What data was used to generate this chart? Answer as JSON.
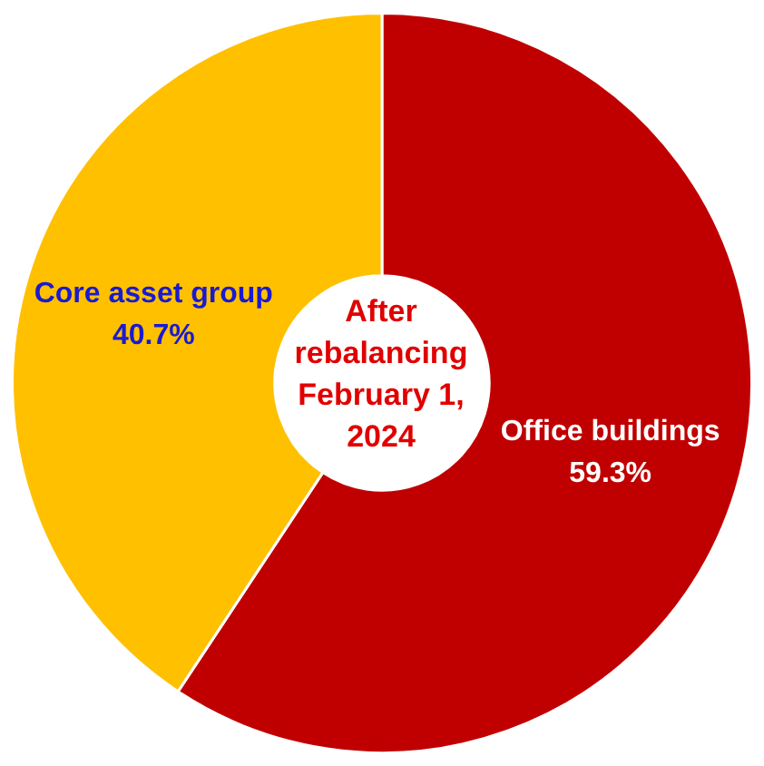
{
  "chart_data": {
    "type": "donut",
    "title": "After rebalancing February 1, 2024",
    "categories": [
      "Office buildings",
      "Core asset group"
    ],
    "values": [
      59.3,
      40.7
    ],
    "colors": [
      "#c00000",
      "#ffc000"
    ],
    "value_labels": [
      "59.3%",
      "40.7%"
    ]
  }
}
